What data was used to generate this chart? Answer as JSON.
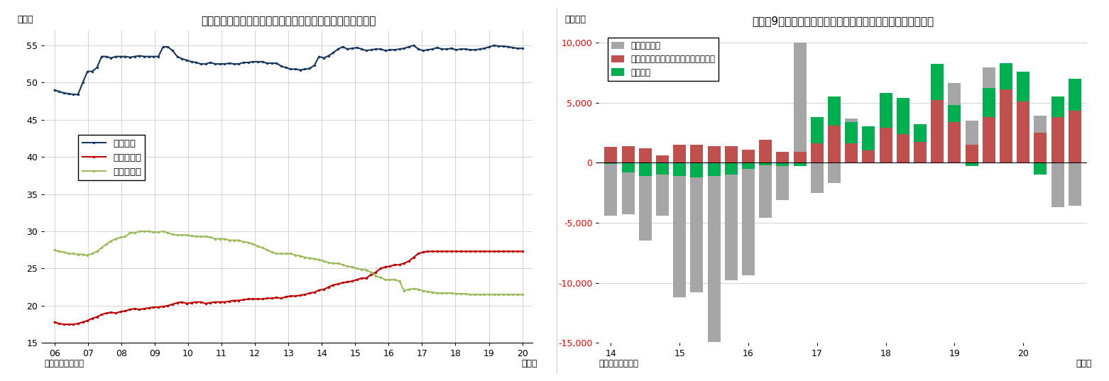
{
  "chart1": {
    "title": "（図表８）流動性・定期性預金の個人金融資産に占める割合",
    "ylabel": "（％）",
    "xlabel": "（年）",
    "source": "（資料）日本銀行",
    "ylim": [
      15,
      57
    ],
    "yticks": [
      15,
      20,
      25,
      30,
      35,
      40,
      45,
      50,
      55
    ],
    "xticks": [
      "06",
      "07",
      "08",
      "09",
      "10",
      "11",
      "12",
      "13",
      "14",
      "15",
      "16",
      "17",
      "18",
      "19",
      "20"
    ],
    "legend_labels": [
      "現預金計",
      "流動性預金",
      "定期性預金"
    ],
    "series": {
      "現預金計": {
        "color": "#17375e",
        "linewidth": 1.5,
        "marker": "o",
        "markersize": 2.5,
        "data": [
          49.0,
          48.8,
          48.6,
          48.5,
          48.4,
          48.4,
          50.0,
          51.5,
          51.5,
          52.0,
          53.5,
          53.5,
          53.3,
          53.5,
          53.5,
          53.5,
          53.4,
          53.5,
          53.6,
          53.5,
          53.5,
          53.5,
          53.5,
          54.8,
          54.8,
          54.3,
          53.5,
          53.2,
          53.0,
          52.8,
          52.7,
          52.5,
          52.5,
          52.7,
          52.5,
          52.5,
          52.5,
          52.6,
          52.5,
          52.5,
          52.7,
          52.7,
          52.8,
          52.8,
          52.8,
          52.6,
          52.6,
          52.6,
          52.2,
          52.0,
          51.8,
          51.8,
          51.7,
          51.8,
          51.9,
          52.3,
          53.5,
          53.3,
          53.6,
          54.0,
          54.5,
          54.8,
          54.5,
          54.6,
          54.7,
          54.5,
          54.3,
          54.4,
          54.5,
          54.5,
          54.3,
          54.4,
          54.4,
          54.5,
          54.6,
          54.8,
          55.0,
          54.5,
          54.3,
          54.4,
          54.5,
          54.7,
          54.5,
          54.5,
          54.6,
          54.4,
          54.5,
          54.5,
          54.4,
          54.4,
          54.5,
          54.6,
          54.8,
          55.0,
          54.9,
          54.9,
          54.8,
          54.7,
          54.6,
          54.6
        ]
      },
      "流動性預金": {
        "color": "#c00000",
        "linewidth": 1.5,
        "marker": "o",
        "markersize": 2.5,
        "data": [
          17.8,
          17.6,
          17.5,
          17.5,
          17.5,
          17.6,
          17.8,
          18.0,
          18.3,
          18.5,
          18.8,
          19.0,
          19.1,
          19.0,
          19.2,
          19.3,
          19.5,
          19.6,
          19.5,
          19.6,
          19.7,
          19.8,
          19.8,
          19.9,
          20.0,
          20.2,
          20.4,
          20.5,
          20.3,
          20.4,
          20.5,
          20.5,
          20.3,
          20.4,
          20.5,
          20.5,
          20.5,
          20.6,
          20.7,
          20.7,
          20.8,
          20.9,
          20.9,
          20.9,
          20.9,
          21.0,
          21.0,
          21.1,
          21.0,
          21.2,
          21.3,
          21.3,
          21.4,
          21.5,
          21.7,
          21.8,
          22.1,
          22.2,
          22.5,
          22.8,
          22.9,
          23.1,
          23.2,
          23.3,
          23.5,
          23.7,
          23.7,
          24.2,
          24.5,
          25.0,
          25.2,
          25.3,
          25.5,
          25.5,
          25.7,
          26.0,
          26.5,
          27.0,
          27.2,
          27.3,
          27.3,
          27.3,
          27.3,
          27.3,
          27.3,
          27.3,
          27.3,
          27.3,
          27.3,
          27.3,
          27.3,
          27.3,
          27.3,
          27.3,
          27.3,
          27.3,
          27.3,
          27.3,
          27.3,
          27.3
        ]
      },
      "定期性預金": {
        "color": "#9bbb59",
        "linewidth": 1.5,
        "marker": "o",
        "markersize": 2.5,
        "data": [
          27.5,
          27.3,
          27.2,
          27.0,
          27.0,
          26.9,
          26.9,
          26.8,
          27.0,
          27.3,
          27.8,
          28.3,
          28.7,
          29.0,
          29.2,
          29.3,
          29.8,
          29.8,
          30.0,
          30.0,
          30.0,
          29.9,
          29.9,
          30.0,
          29.8,
          29.6,
          29.5,
          29.5,
          29.5,
          29.4,
          29.3,
          29.3,
          29.3,
          29.2,
          29.0,
          29.0,
          29.0,
          28.8,
          28.8,
          28.8,
          28.6,
          28.5,
          28.3,
          28.0,
          27.8,
          27.5,
          27.2,
          27.0,
          27.0,
          27.0,
          27.0,
          26.8,
          26.7,
          26.5,
          26.4,
          26.3,
          26.2,
          26.0,
          25.8,
          25.7,
          25.7,
          25.5,
          25.3,
          25.2,
          25.0,
          24.9,
          24.8,
          24.5,
          24.0,
          23.8,
          23.5,
          23.5,
          23.5,
          23.3,
          22.0,
          22.2,
          22.3,
          22.2,
          22.0,
          21.9,
          21.8,
          21.7,
          21.7,
          21.7,
          21.7,
          21.6,
          21.6,
          21.6,
          21.5,
          21.5,
          21.5,
          21.5,
          21.5,
          21.5,
          21.5,
          21.5,
          21.5,
          21.5,
          21.5,
          21.5
        ]
      }
    }
  },
  "chart2": {
    "title": "（図表9）外貨預金・投信（確定拠出年金内）・国債のフロー",
    "ylabel": "（億円）",
    "xlabel": "（年）",
    "source": "（資料）日本銀行",
    "ylim": [
      -15000,
      11000
    ],
    "yticks": [
      -15000,
      -10000,
      -5000,
      0,
      5000,
      10000
    ],
    "ytick_color": "red",
    "n_bars": 28,
    "year_positions": [
      0,
      4,
      8,
      12,
      16,
      20,
      24
    ],
    "year_labels": [
      "14",
      "15",
      "16",
      "17",
      "18",
      "19",
      "20"
    ],
    "bar_width": 0.75,
    "series": {
      "国債・財投債": {
        "color": "#a6a6a6",
        "label": "国債・財投債",
        "data": [
          -4400,
          -4300,
          -6500,
          -4400,
          -11200,
          -10800,
          -14900,
          -9800,
          -9400,
          -4600,
          -3100,
          10000,
          -2500,
          -1700,
          3700,
          2000,
          3600,
          3500,
          1400,
          2600,
          6600,
          3500,
          7900,
          6000,
          5900,
          3900,
          -3700,
          -3600
        ]
      },
      "投資信託受益証券": {
        "color": "#c0504d",
        "label": "投資信託受益証券（確定拠出年金内）",
        "data": [
          1300,
          1400,
          1200,
          600,
          1500,
          1500,
          1400,
          1400,
          1100,
          1900,
          900,
          900,
          1600,
          3100,
          1600,
          1000,
          2900,
          2400,
          1700,
          5200,
          3400,
          1500,
          3800,
          6100,
          5100,
          2500,
          3800,
          4300
        ]
      },
      "外貨預金": {
        "color": "#00b050",
        "label": "外貨預金",
        "data": [
          -100,
          -800,
          -1100,
          -1000,
          -1100,
          -1200,
          -1100,
          -1000,
          -500,
          -200,
          -300,
          -300,
          2200,
          2400,
          1800,
          2000,
          2900,
          3000,
          1500,
          3000,
          1400,
          -300,
          2400,
          2200,
          2500,
          -1000,
          1700,
          2700
        ]
      }
    }
  }
}
